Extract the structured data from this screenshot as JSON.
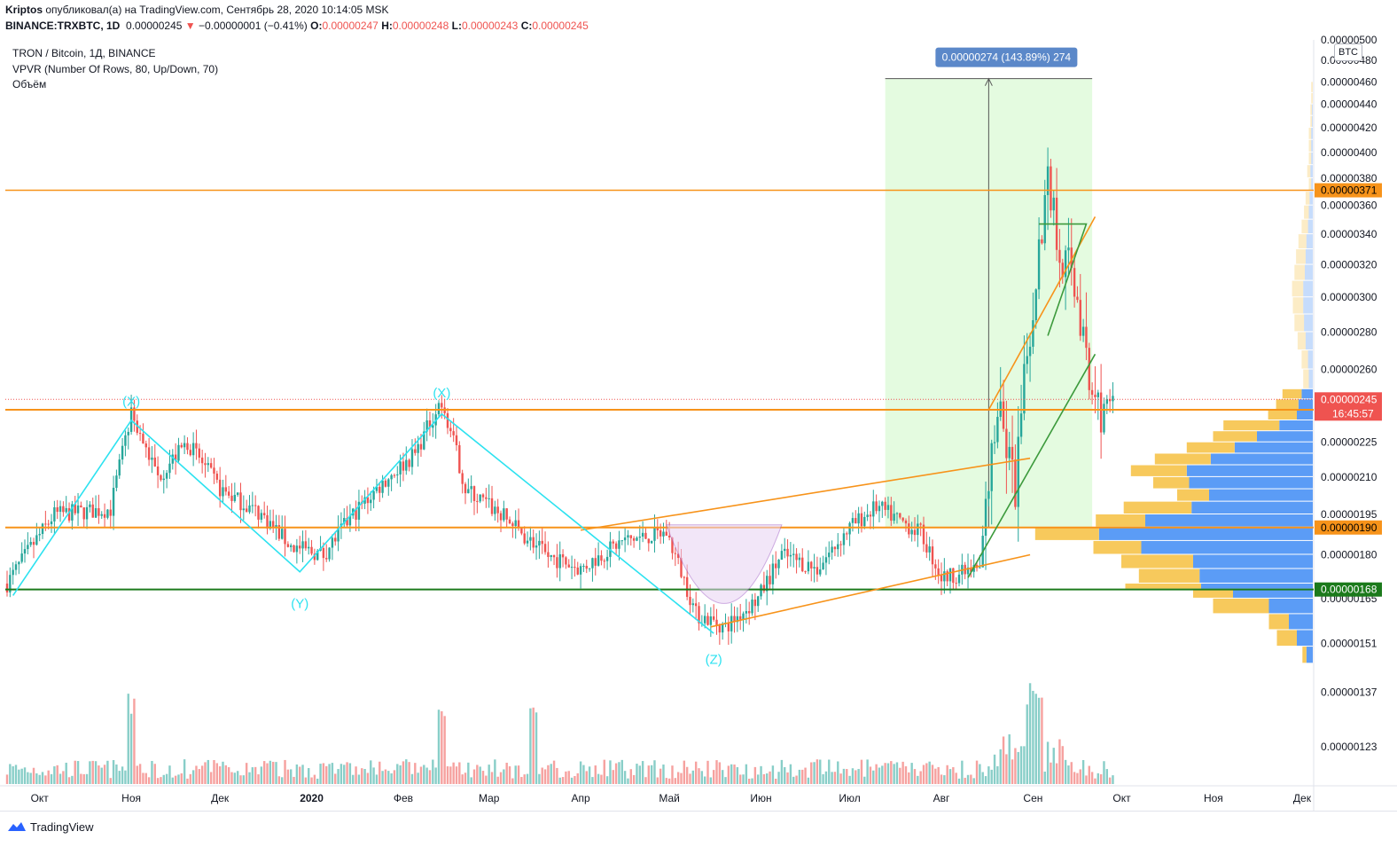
{
  "header": {
    "line1": {
      "author": "Kriptos",
      "text": "опубликовал(а) на TradingView.com, Сентябрь 28, 2020 10:14:05 MSK"
    },
    "line2": {
      "symbol": "BINANCE:TRXBTC, 1D",
      "last": "0.00000245",
      "arrow": "▼",
      "change": "−0.00000001 (−0.41%)",
      "o_label": "O:",
      "o_value": "0.00000247",
      "h_label": "H:",
      "h_value": "0.00000248",
      "l_label": "L:",
      "l_value": "0.00000243",
      "c_label": "C:",
      "c_value": "0.00000245"
    }
  },
  "legend": {
    "title": "TRON / Bitcoin, 1Д, BINANCE",
    "vpvr": "VPVR (Number Of Rows, 80, Up/Down, 70)",
    "volume": "Объём"
  },
  "currency": "BTC",
  "footer": {
    "brand": "TradingView"
  },
  "colors": {
    "up": "#26a69a",
    "down": "#ef5350",
    "orange": "#f7931a",
    "green_line": "#1b7a1b",
    "cyan": "#2de2f0",
    "range_fill": "#e4fbe0",
    "vpvr_up": "#5b9cf6",
    "vpvr_down": "#f7c95c",
    "badge_blue": "#5b88c9",
    "current_price": "#ef5350"
  },
  "chart_data": {
    "type": "candlestick",
    "symbol": "TRXBTC",
    "interval": "1D",
    "y_axis": {
      "scale": "log",
      "ylim": [
        1.14e-06,
        5e-06
      ],
      "tick_labels": [
        "0.00000500",
        "0.00000480",
        "0.00000460",
        "0.00000440",
        "0.00000420",
        "0.00000400",
        "0.00000380",
        "0.00000360",
        "0.00000340",
        "0.00000320",
        "0.00000300",
        "0.00000280",
        "0.00000260",
        "0.00000225",
        "0.00000210",
        "0.00000195",
        "0.00000180",
        "0.00000165",
        "0.00000151",
        "0.00000137",
        "0.00000123"
      ],
      "tick_values": [
        5.0,
        4.8,
        4.6,
        4.4,
        4.2,
        4.0,
        3.8,
        3.6,
        3.4,
        3.2,
        3.0,
        2.8,
        2.6,
        2.25,
        2.1,
        1.95,
        1.8,
        1.65,
        1.51,
        1.37,
        1.23
      ]
    },
    "x_axis": {
      "range": [
        "2019-09-20",
        "2020-12-31"
      ],
      "ticks": [
        {
          "label": "Окт",
          "date": "2019-10-01"
        },
        {
          "label": "Ноя",
          "date": "2019-11-01"
        },
        {
          "label": "Дек",
          "date": "2019-12-01"
        },
        {
          "label": "2020",
          "date": "2020-01-01",
          "bold": true
        },
        {
          "label": "Фев",
          "date": "2020-02-01"
        },
        {
          "label": "Мар",
          "date": "2020-03-01"
        },
        {
          "label": "Апр",
          "date": "2020-04-01"
        },
        {
          "label": "Май",
          "date": "2020-05-01"
        },
        {
          "label": "Июн",
          "date": "2020-06-01"
        },
        {
          "label": "Июл",
          "date": "2020-07-01"
        },
        {
          "label": "Авг",
          "date": "2020-08-01"
        },
        {
          "label": "Сен",
          "date": "2020-09-01"
        },
        {
          "label": "Окт",
          "date": "2020-10-01"
        },
        {
          "label": "Ноя",
          "date": "2020-11-01"
        },
        {
          "label": "Дек",
          "date": "2020-12-01"
        }
      ]
    },
    "price_path": [
      [
        "2019-09-20",
        1.7
      ],
      [
        "2019-10-06",
        1.95
      ],
      [
        "2019-10-25",
        1.97
      ],
      [
        "2019-11-01",
        2.38
      ],
      [
        "2019-11-10",
        2.1
      ],
      [
        "2019-11-20",
        2.25
      ],
      [
        "2019-12-01",
        2.05
      ],
      [
        "2019-12-15",
        1.95
      ],
      [
        "2019-12-25",
        1.83
      ],
      [
        "2020-01-05",
        1.8
      ],
      [
        "2020-01-15",
        1.95
      ],
      [
        "2020-01-27",
        2.1
      ],
      [
        "2020-02-05",
        2.2
      ],
      [
        "2020-02-14",
        2.45
      ],
      [
        "2020-02-22",
        2.05
      ],
      [
        "2020-03-05",
        1.95
      ],
      [
        "2020-03-20",
        1.8
      ],
      [
        "2020-04-01",
        1.75
      ],
      [
        "2020-04-15",
        1.85
      ],
      [
        "2020-04-30",
        1.88
      ],
      [
        "2020-05-10",
        1.6
      ],
      [
        "2020-05-20",
        1.56
      ],
      [
        "2020-05-31",
        1.65
      ],
      [
        "2020-06-08",
        1.8
      ],
      [
        "2020-06-20",
        1.75
      ],
      [
        "2020-07-01",
        1.9
      ],
      [
        "2020-07-10",
        1.98
      ],
      [
        "2020-07-25",
        1.88
      ],
      [
        "2020-08-01",
        1.72
      ],
      [
        "2020-08-14",
        1.75
      ],
      [
        "2020-08-20",
        2.4
      ],
      [
        "2020-08-26",
        2.05
      ],
      [
        "2020-09-03",
        3.3
      ],
      [
        "2020-09-06",
        3.8
      ],
      [
        "2020-09-10",
        3.3
      ],
      [
        "2020-09-15",
        3.1
      ],
      [
        "2020-09-20",
        2.5
      ],
      [
        "2020-09-24",
        2.4
      ],
      [
        "2020-09-28",
        2.45
      ]
    ],
    "volume": {
      "ylim_ratio": "relative",
      "spike_dates": [
        "2019-11-01",
        "2020-02-14",
        "2020-03-16",
        "2020-08-31",
        "2020-09-03"
      ]
    },
    "horizontal_lines": [
      {
        "price": 3.71,
        "label": "0.00000371",
        "color": "orange"
      },
      {
        "price": 2.4,
        "label": "0.00000240",
        "color": "orange"
      },
      {
        "price": 1.9,
        "label": "0.00000190",
        "color": "orange"
      },
      {
        "price": 1.68,
        "label": "0.00000168",
        "color": "green"
      }
    ],
    "current_price": {
      "price": 2.45,
      "label": "0.00000245",
      "countdown": "16:45:57"
    },
    "price_range_tool": {
      "from_date": "2020-07-13",
      "to_date": "2020-09-21",
      "label": "0.00000274 (143.89%) 274"
    },
    "wave_labels": [
      "(X)",
      "(Y)",
      "(Z)",
      "(X)"
    ],
    "vpvr_rows": [
      [
        4.6,
        0,
        2
      ],
      [
        4.5,
        0,
        2
      ],
      [
        4.4,
        1,
        2
      ],
      [
        4.3,
        1,
        2
      ],
      [
        4.2,
        2,
        3
      ],
      [
        4.1,
        2,
        3
      ],
      [
        4.0,
        2,
        3
      ],
      [
        3.9,
        3,
        4
      ],
      [
        3.8,
        2,
        3
      ],
      [
        3.7,
        4,
        5
      ],
      [
        3.6,
        5,
        6
      ],
      [
        3.5,
        6,
        8
      ],
      [
        3.4,
        8,
        10
      ],
      [
        3.3,
        9,
        12
      ],
      [
        3.2,
        10,
        13
      ],
      [
        3.1,
        12,
        14
      ],
      [
        3.0,
        12,
        13
      ],
      [
        2.9,
        11,
        12
      ],
      [
        2.8,
        9,
        10
      ],
      [
        2.7,
        6,
        8
      ],
      [
        2.6,
        5,
        7
      ],
      [
        2.5,
        14,
        24
      ],
      [
        2.45,
        18,
        28
      ],
      [
        2.4,
        20,
        36
      ],
      [
        2.35,
        42,
        70
      ],
      [
        2.3,
        70,
        55
      ],
      [
        2.25,
        98,
        60
      ],
      [
        2.2,
        128,
        70
      ],
      [
        2.15,
        158,
        70
      ],
      [
        2.1,
        155,
        45
      ],
      [
        2.05,
        130,
        40
      ],
      [
        2.0,
        152,
        85
      ],
      [
        1.95,
        210,
        62
      ],
      [
        1.9,
        268,
        80
      ],
      [
        1.85,
        215,
        60
      ],
      [
        1.8,
        150,
        90
      ],
      [
        1.75,
        142,
        76
      ],
      [
        1.7,
        140,
        95
      ],
      [
        1.68,
        100,
        50
      ],
      [
        1.65,
        55,
        70
      ],
      [
        1.6,
        30,
        25
      ],
      [
        1.55,
        20,
        25
      ],
      [
        1.5,
        8,
        5
      ]
    ]
  }
}
